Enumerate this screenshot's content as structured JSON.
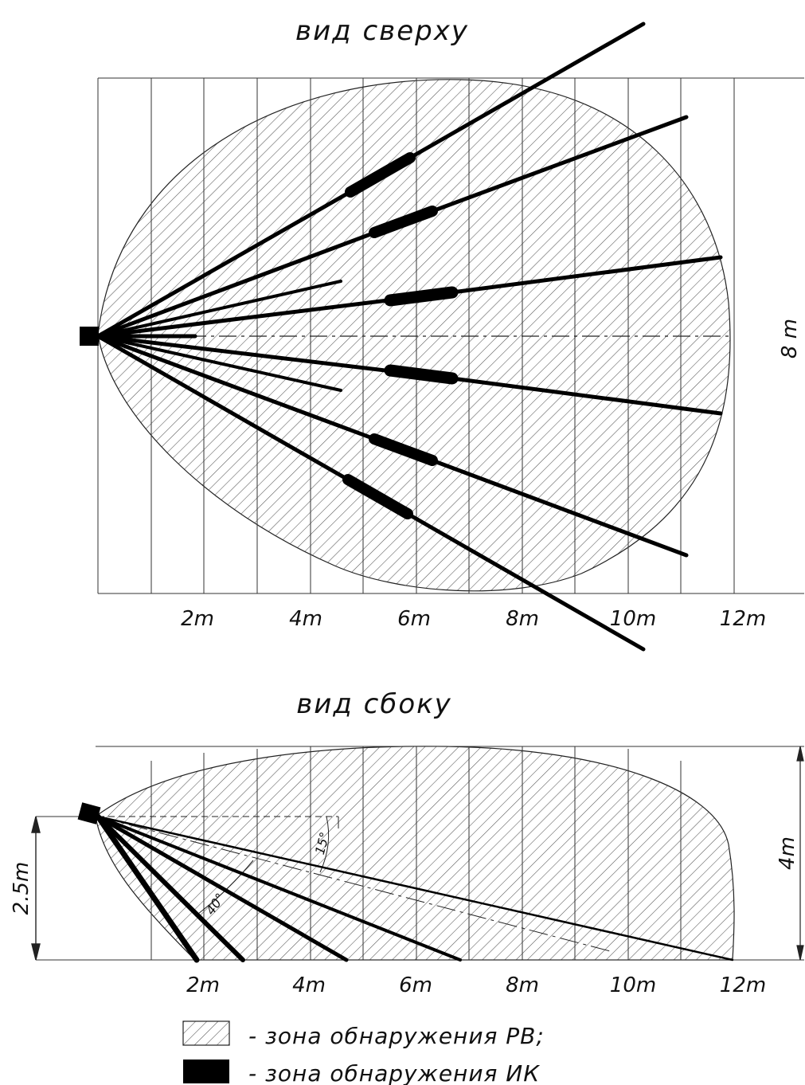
{
  "top_view": {
    "title": "вид сверху",
    "x_ticks": [
      "2m",
      "4m",
      "6m",
      "8m",
      "10m",
      "12m"
    ],
    "width_label": "8 m"
  },
  "side_view": {
    "title": "вид сбоку",
    "x_ticks": [
      "2m",
      "4m",
      "6m",
      "8m",
      "10m",
      "12m"
    ],
    "mount_height_label": "2.5m",
    "height_label": "4m",
    "angle_small_label": "15°",
    "angle_large_label": "40°"
  },
  "legend": {
    "rv_label": "- зона обнаружения РВ;",
    "ik_label": "- зона обнаружения ИК"
  },
  "colors": {
    "ink": "#111111",
    "hatch": "#555555",
    "background": "#ffffff"
  }
}
